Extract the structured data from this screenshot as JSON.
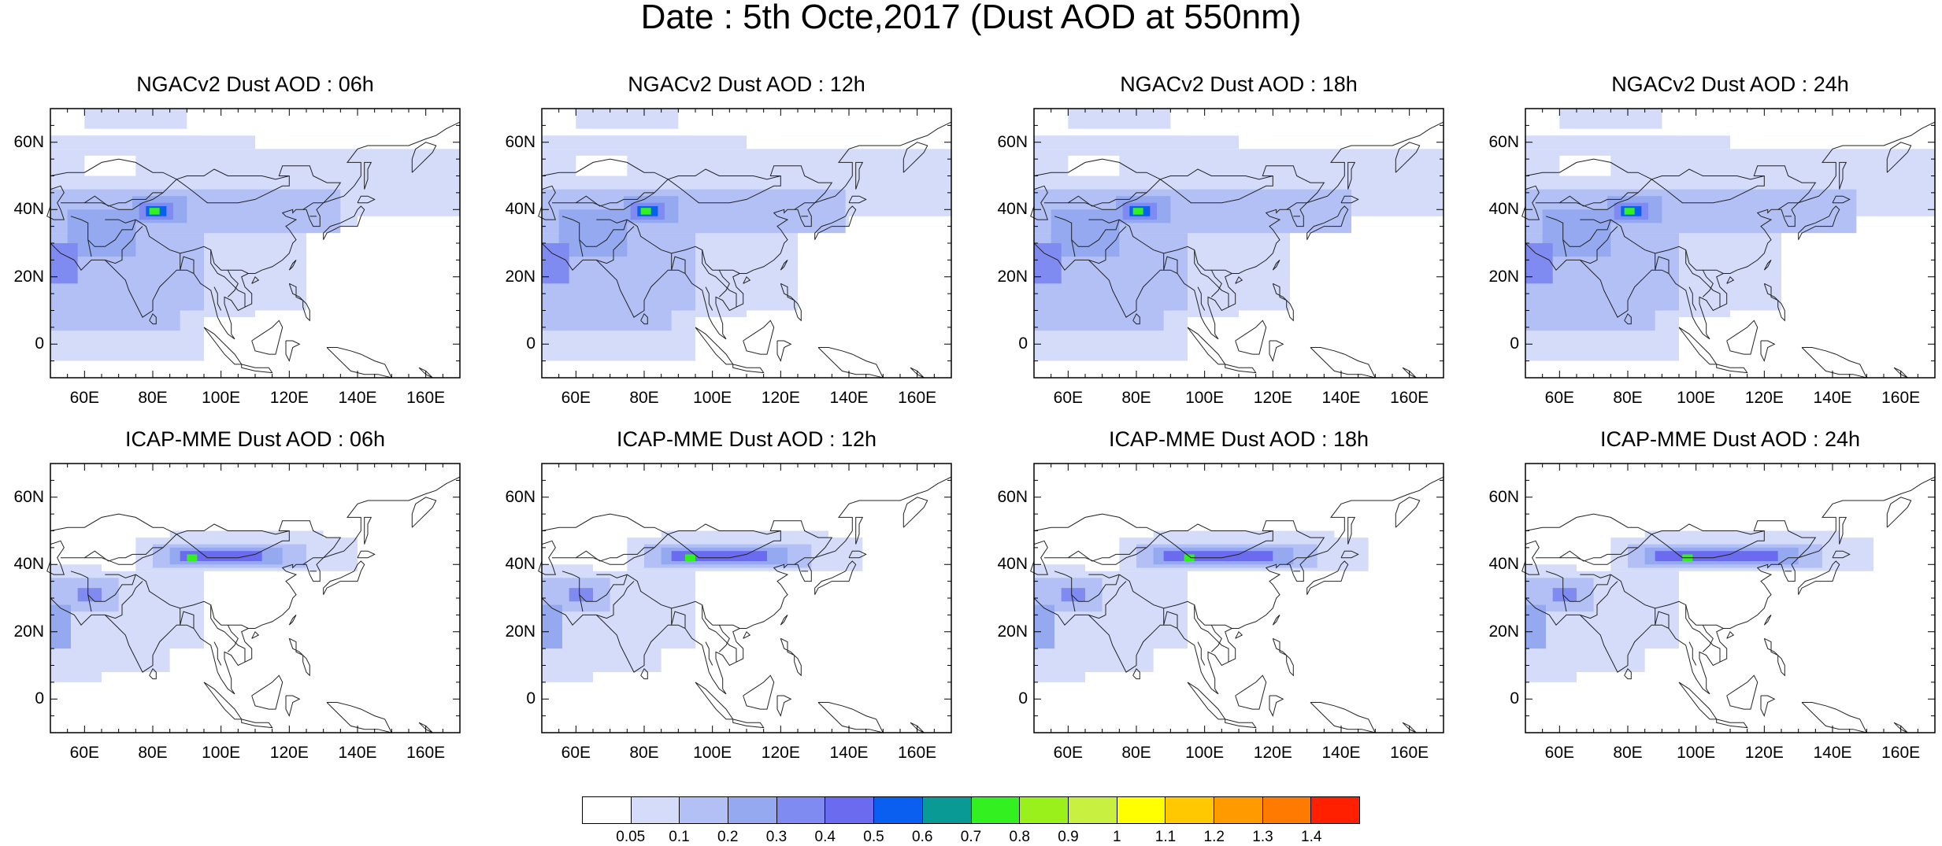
{
  "title": "Date : 5th Octe,2017 (Dust AOD at 550nm)",
  "panels": [
    {
      "title": "NGACv2 Dust AOD : 06h",
      "row": 0,
      "col": 0,
      "model": "ngac"
    },
    {
      "title": "NGACv2 Dust AOD : 12h",
      "row": 0,
      "col": 1,
      "model": "ngac"
    },
    {
      "title": "NGACv2 Dust AOD : 18h",
      "row": 0,
      "col": 2,
      "model": "ngac"
    },
    {
      "title": "NGACv2 Dust AOD : 24h",
      "row": 0,
      "col": 3,
      "model": "ngac"
    },
    {
      "title": "ICAP-MME Dust AOD : 06h",
      "row": 1,
      "col": 0,
      "model": "icap"
    },
    {
      "title": "ICAP-MME Dust AOD : 12h",
      "row": 1,
      "col": 1,
      "model": "icap"
    },
    {
      "title": "ICAP-MME Dust AOD : 18h",
      "row": 1,
      "col": 2,
      "model": "icap"
    },
    {
      "title": "ICAP-MME Dust AOD : 24h",
      "row": 1,
      "col": 3,
      "model": "icap"
    }
  ],
  "map": {
    "lon_range": [
      50,
      170
    ],
    "lat_range": [
      -10,
      70
    ],
    "lat_ticks": [
      {
        "value": 0,
        "label": "0"
      },
      {
        "value": 20,
        "label": "20N"
      },
      {
        "value": 40,
        "label": "40N"
      },
      {
        "value": 60,
        "label": "60N"
      }
    ],
    "lon_ticks": [
      {
        "value": 60,
        "label": "60E"
      },
      {
        "value": 80,
        "label": "80E"
      },
      {
        "value": 100,
        "label": "100E"
      },
      {
        "value": 120,
        "label": "120E"
      },
      {
        "value": 140,
        "label": "140E"
      },
      {
        "value": 160,
        "label": "160E"
      }
    ]
  },
  "colorbar": {
    "colors": [
      "#ffffff",
      "#d4dcfa",
      "#b3c0f5",
      "#94a9f0",
      "#7f8bf0",
      "#6b6bf0",
      "#0a5ff0",
      "#0a9a96",
      "#33f020",
      "#99f01a",
      "#c8f040",
      "#ffff00",
      "#ffc800",
      "#ff9a00",
      "#ff7a00",
      "#ff2000"
    ],
    "labels": [
      "0.05",
      "0.1",
      "0.2",
      "0.3",
      "0.4",
      "0.5",
      "0.6",
      "0.7",
      "0.8",
      "0.9",
      "1",
      "1.1",
      "1.2",
      "1.3",
      "1.4"
    ]
  }
}
